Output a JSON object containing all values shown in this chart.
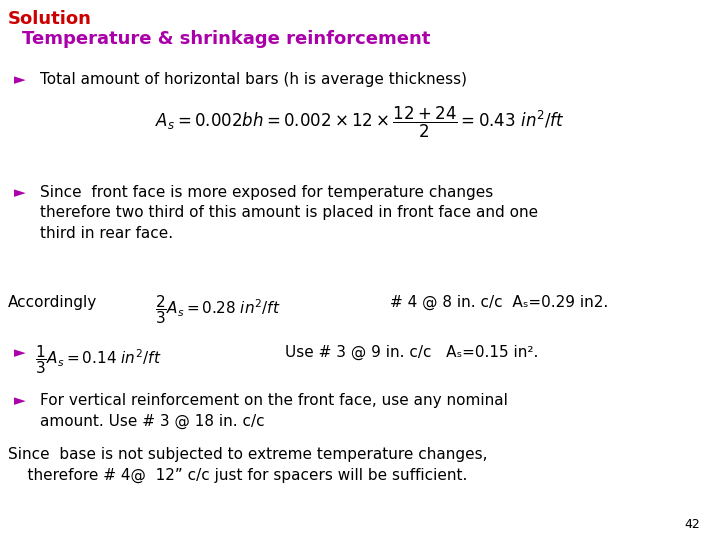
{
  "title1": "Solution",
  "title1_color": "#CC0000",
  "title2": "Temperature & shrinkage reinforcement",
  "title2_color": "#AA00AA",
  "bg_color": "#FFFFFF",
  "bullet_color": "#AA00AA",
  "text_color": "#000000",
  "formula_color": "#000000",
  "page_number": "42",
  "title1_fontsize": 13,
  "title2_fontsize": 13,
  "body_fontsize": 11,
  "formula_fontsize": 11
}
